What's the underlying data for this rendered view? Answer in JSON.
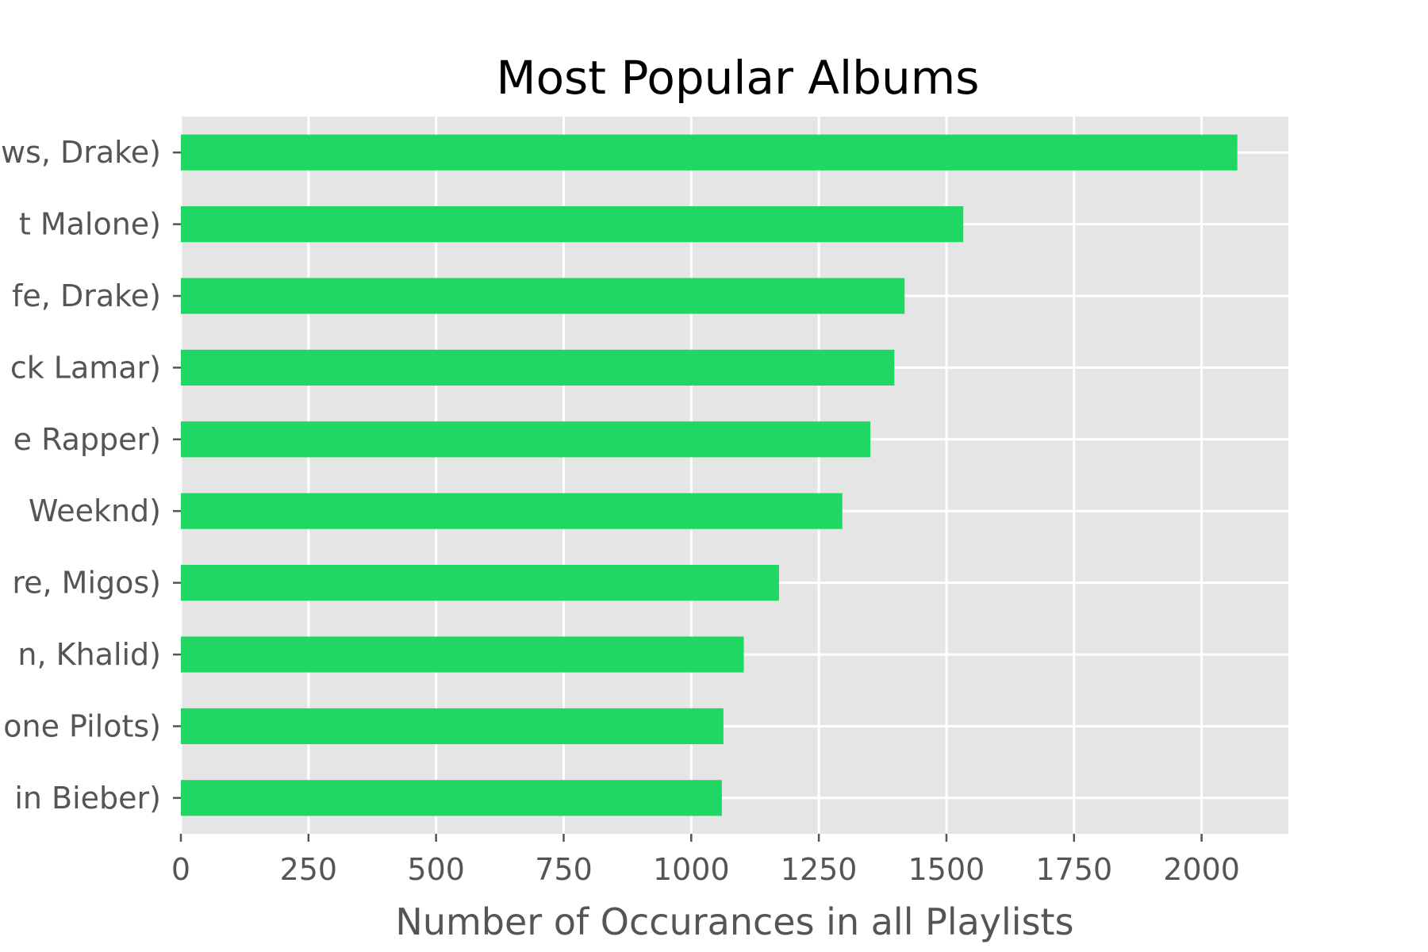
{
  "chart_data": {
    "type": "bar",
    "orientation": "horizontal",
    "title": "Most Popular Albums",
    "xlabel": "Number of Occurances in all Playlists",
    "ylabel": "",
    "xlim": [
      0,
      2170
    ],
    "xticks": [
      0,
      250,
      500,
      750,
      1000,
      1250,
      1500,
      1750,
      2000
    ],
    "grid": true,
    "categories": [
      "ws, Drake)",
      "t Malone)",
      "fe, Drake)",
      "ck Lamar)",
      "e Rapper)",
      " Weeknd)",
      "re, Migos)",
      "n, Khalid)",
      "one Pilots)",
      "in Bieber)"
    ],
    "values": [
      2070,
      1533,
      1418,
      1398,
      1351,
      1296,
      1172,
      1103,
      1063,
      1060
    ],
    "colors": {
      "bar": "#21d764",
      "panel": "#e5e5e5",
      "grid": "#ffffff"
    }
  }
}
